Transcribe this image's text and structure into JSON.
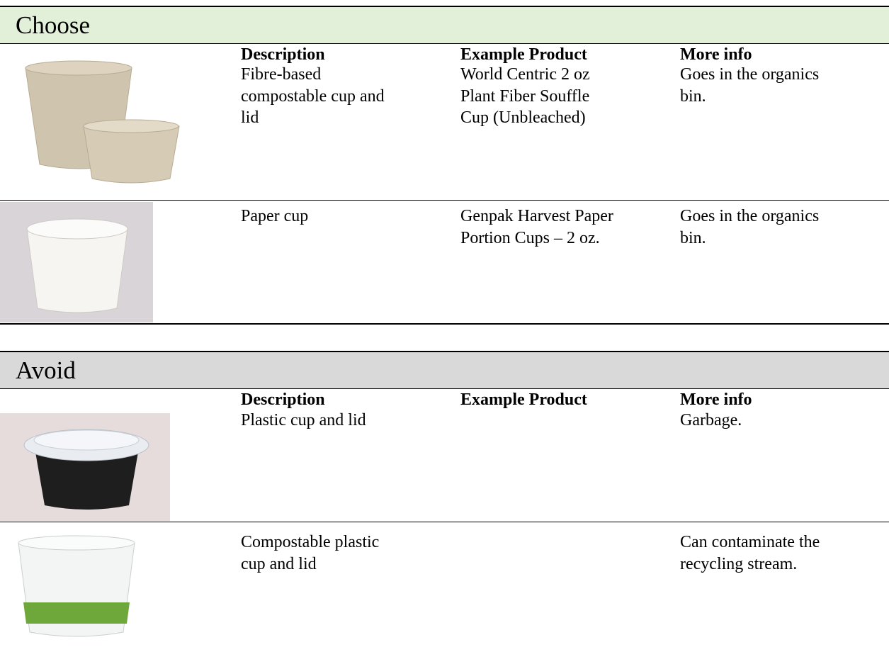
{
  "sections": [
    {
      "title": "Choose",
      "header": {
        "description": "Description",
        "example": "Example Product",
        "info": "More info"
      },
      "rows": [
        {
          "description": "Fibre-based compostable cup and lid",
          "example": "World Centric 2 oz Plant Fiber Souffle Cup (Unbleached)",
          "info": "Goes in the organics bin."
        },
        {
          "description": "Paper cup",
          "example": "Genpak Harvest Paper Portion Cups – 2 oz.",
          "info": "Goes in the organics bin."
        }
      ]
    },
    {
      "title": "Avoid",
      "header": {
        "description": "Description",
        "example": "Example Product",
        "info": "More info"
      },
      "rows": [
        {
          "description": "Plastic cup and lid",
          "info": "Garbage."
        },
        {
          "description": "Compostable plastic cup and lid",
          "info": "Can contaminate the recycling stream."
        }
      ]
    }
  ]
}
